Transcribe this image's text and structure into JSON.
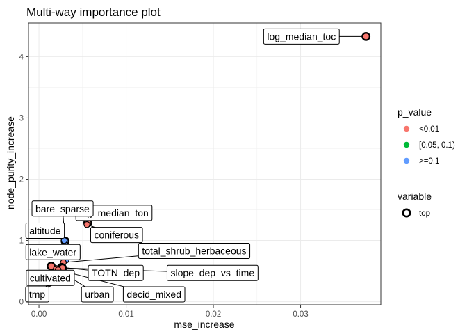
{
  "chart_data": {
    "type": "scatter",
    "title": "Multi-way importance plot",
    "xlabel": "mse_increase",
    "ylabel": "node_purity_increase",
    "xlim": [
      -0.0012,
      0.0392
    ],
    "ylim": [
      -0.05,
      4.55
    ],
    "x_ticks": [
      0,
      0.01,
      0.02,
      0.03
    ],
    "x_tick_labels": [
      "0.00",
      "0.01",
      "0.02",
      "0.03"
    ],
    "y_ticks": [
      0,
      1,
      2,
      3,
      4
    ],
    "y_tick_labels": [
      "0",
      "1",
      "2",
      "3",
      "4"
    ],
    "grid": true,
    "colors": {
      "<0.01": "#F8766D",
      "[0.05, 0.1)": "#00BA38",
      ">=0.1": "#619CFF"
    },
    "legend_position": "right",
    "legend": {
      "p_value_title": "p_value",
      "p_value_entries": [
        "<0.01",
        "[0.05, 0.1)",
        ">=0.1"
      ],
      "variable_title": "variable",
      "variable_entries": [
        "top"
      ]
    },
    "points": [
      {
        "label": "log_median_toc",
        "x": 0.0375,
        "y": 4.33,
        "p_value": "<0.01",
        "top": true
      },
      {
        "label": "log_median_ton",
        "x": 0.0056,
        "y": 1.29,
        "p_value": "<0.01",
        "top": true
      },
      {
        "label": "coniferous",
        "x": 0.0055,
        "y": 1.26,
        "p_value": "<0.01",
        "top": false
      },
      {
        "label": "bare_sparse",
        "x": 0.003,
        "y": 0.99,
        "p_value": ">=0.1",
        "top": true
      },
      {
        "label": "altitude",
        "x": 0.0029,
        "y": 1.0,
        "p_value": ">=0.1",
        "top": false
      },
      {
        "label": "lake_water",
        "x": 0.0031,
        "y": 0.68,
        "p_value": ">=0.1",
        "top": false
      },
      {
        "label": "total_shrub_herbaceous",
        "x": 0.0028,
        "y": 0.64,
        "p_value": "<0.01",
        "top": false
      },
      {
        "label": "TOTN_dep",
        "x": 0.0026,
        "y": 0.56,
        "p_value": "<0.01",
        "top": true
      },
      {
        "label": "slope_dep_vs_time",
        "x": 0.0027,
        "y": 0.55,
        "p_value": "<0.01",
        "top": true
      },
      {
        "label": "cultivated",
        "x": 0.0014,
        "y": 0.58,
        "p_value": "<0.01",
        "top": true
      },
      {
        "label": "urban",
        "x": 0.002,
        "y": 0.54,
        "p_value": "<0.01",
        "top": false
      },
      {
        "label": "decid_mixed",
        "x": 0.0022,
        "y": 0.52,
        "p_value": "<0.01",
        "top": false
      },
      {
        "label": "tmp",
        "x": 0.0012,
        "y": 0.3,
        "p_value": "<0.01",
        "top": false
      }
    ],
    "labels": [
      {
        "text": "log_median_toc",
        "x": 0.0301,
        "y": 4.33
      },
      {
        "text": "log_median_ton",
        "x": 0.0086,
        "y": 1.45
      },
      {
        "text": "coniferous",
        "x": 0.0089,
        "y": 1.09
      },
      {
        "text": "bare_sparse",
        "x": 0.0027,
        "y": 1.52
      },
      {
        "text": "altitude",
        "x": 0.0007,
        "y": 1.16
      },
      {
        "text": "lake_water",
        "x": 0.0016,
        "y": 0.81
      },
      {
        "text": "total_shrub_herbaceous",
        "x": 0.0178,
        "y": 0.83
      },
      {
        "text": "TOTN_dep",
        "x": 0.0088,
        "y": 0.47
      },
      {
        "text": "slope_dep_vs_time",
        "x": 0.0199,
        "y": 0.47
      },
      {
        "text": "cultivated",
        "x": 0.0013,
        "y": 0.39
      },
      {
        "text": "urban",
        "x": 0.0067,
        "y": 0.12
      },
      {
        "text": "decid_mixed",
        "x": 0.0132,
        "y": 0.12
      },
      {
        "text": "tmp",
        "x": -0.0002,
        "y": 0.12
      }
    ]
  }
}
